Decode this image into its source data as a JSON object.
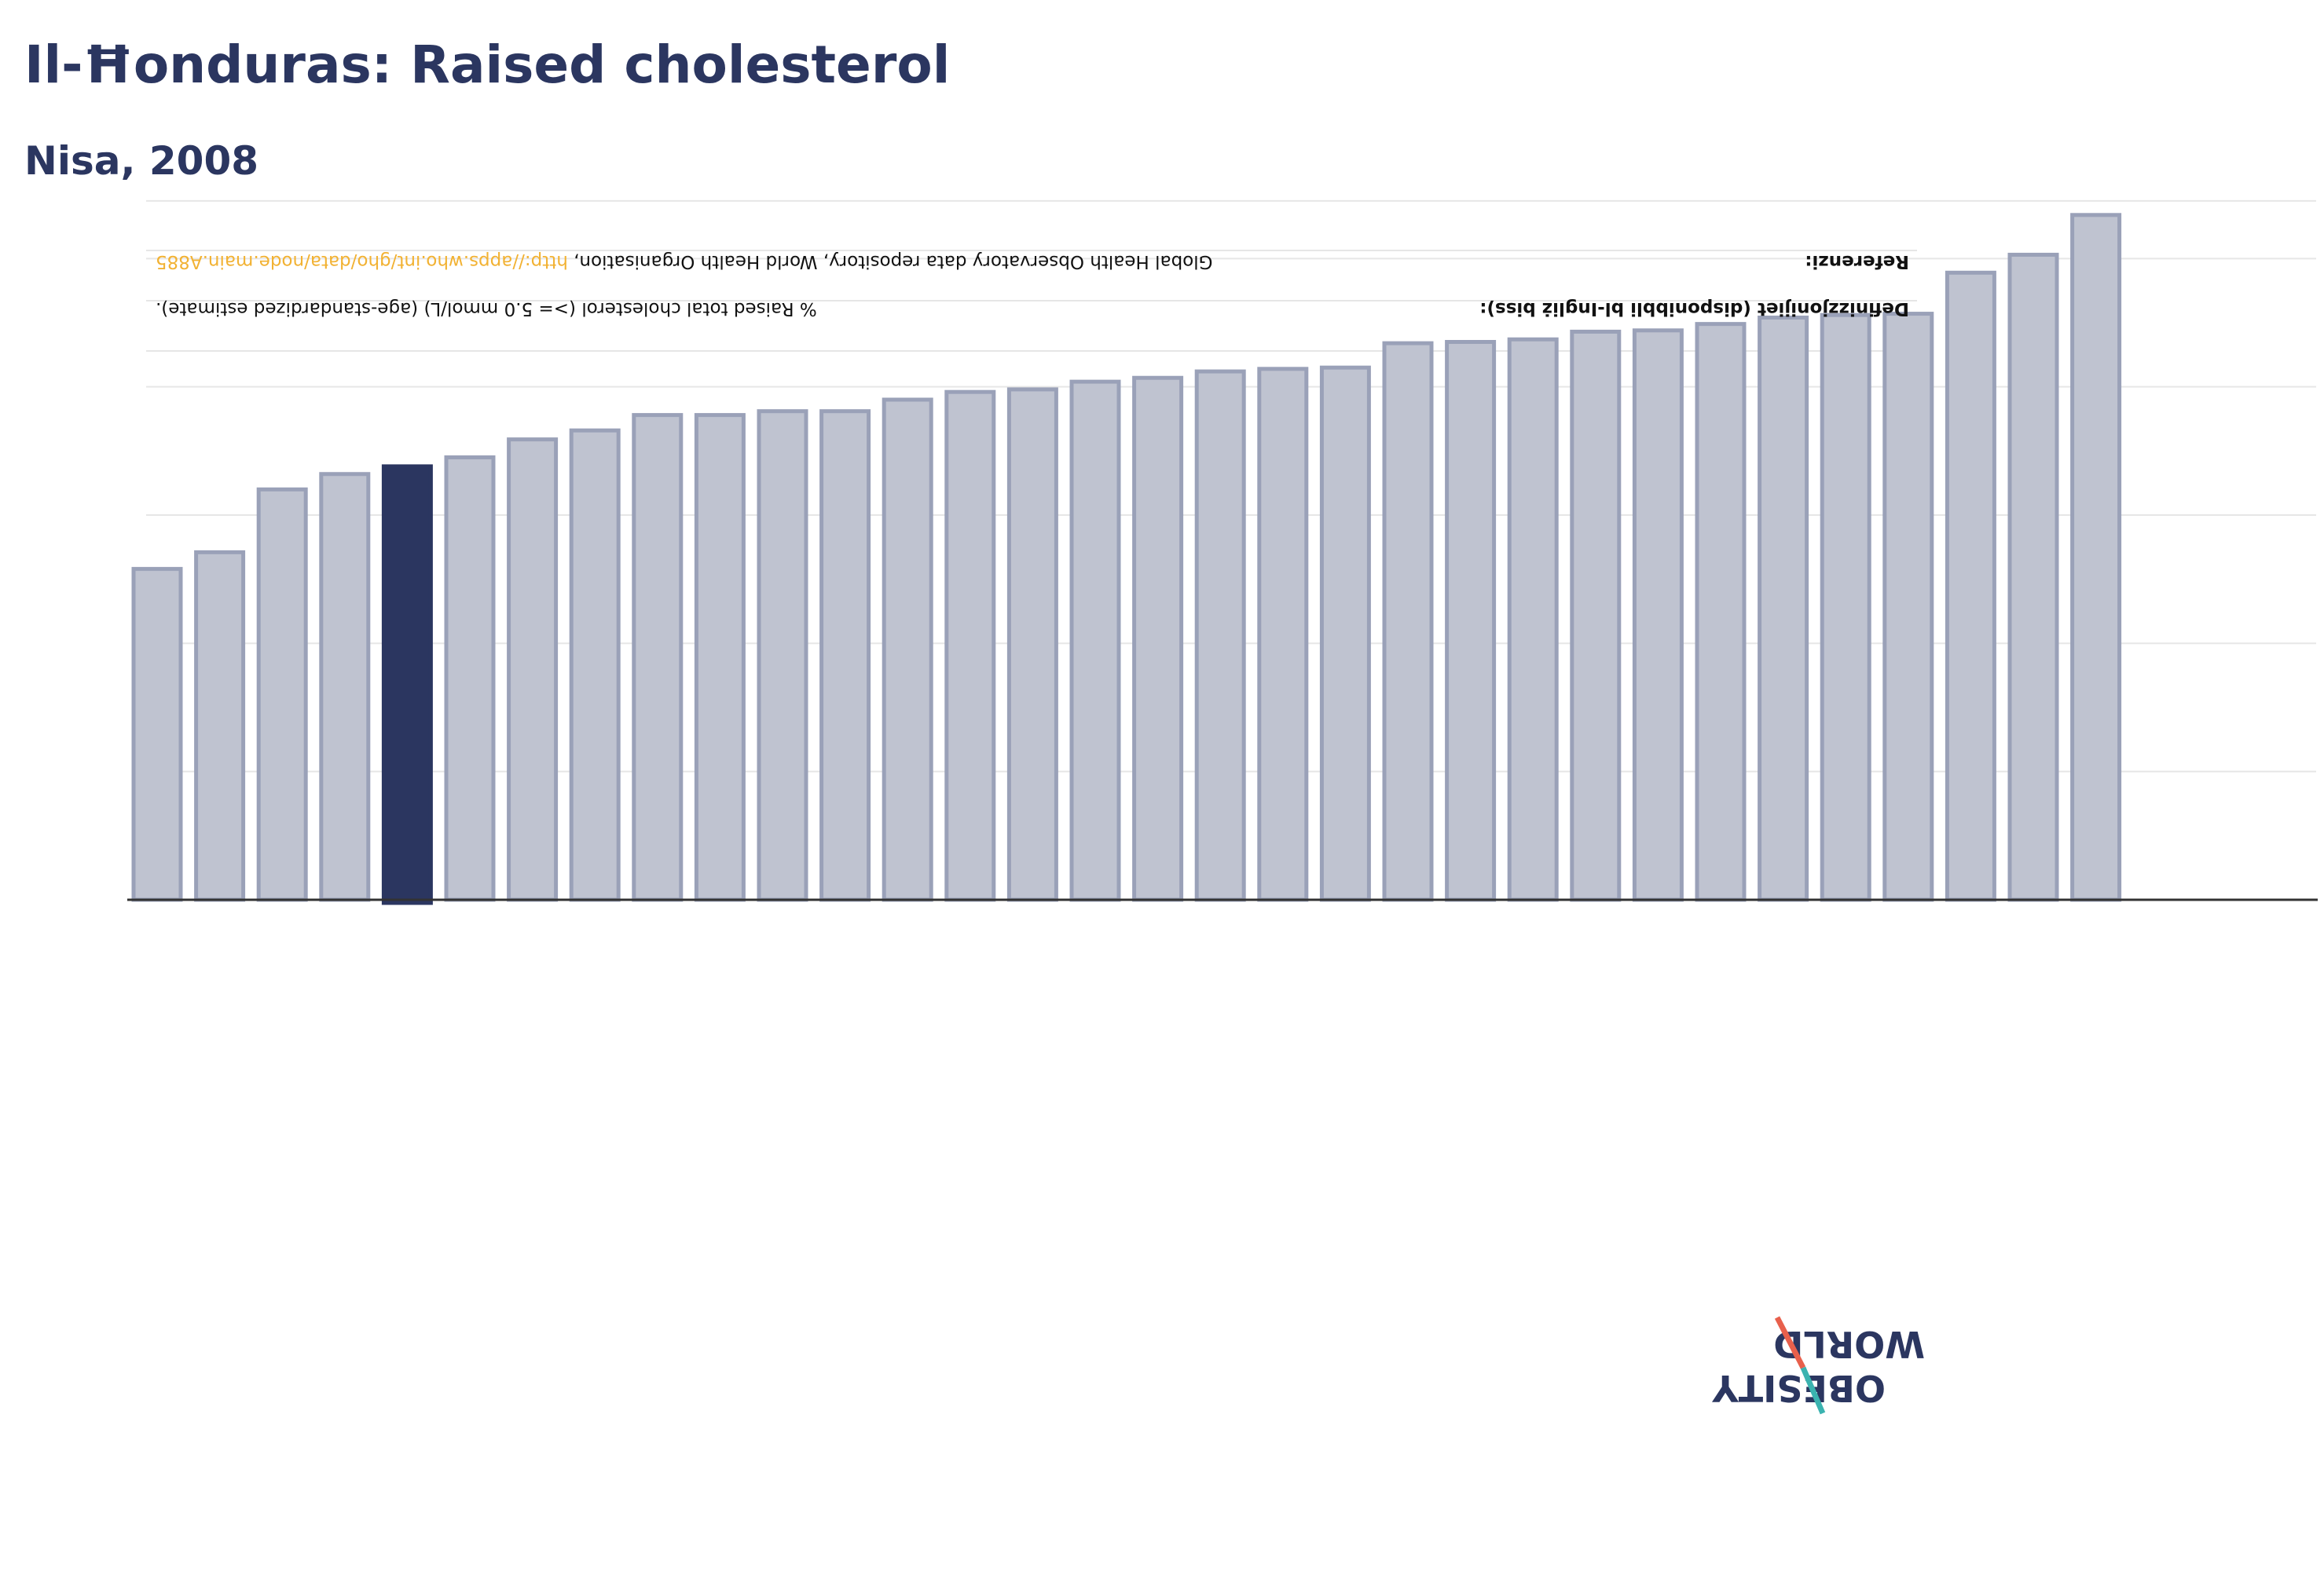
{
  "title": "Il-Ħonduras: Raised cholesterol",
  "subtitle": "Nisa, 2008",
  "info": {
    "definitions_label": "Definizzjonijiet (disponibbli bl-Ingliż biss):",
    "definitions_value": "% Raised total cholesterol (>= 5.0 mmol/L) (age-standardized estimate).",
    "references_label": "Referenzi:",
    "references_value": "Global Health Observatory data repository, World Health Organisation, ",
    "references_link": "http://apps.who.int/gho/data/node.main.A885"
  },
  "logo": {
    "line1": "OBESITY",
    "line2": "WORLD"
  },
  "colors": {
    "bar": "#bfc3d0",
    "bar_border": "#9aa1b8",
    "highlight": "#2b3660",
    "text": "#2b3660",
    "grid": "#e6e6e6",
    "axis": "#333333",
    "link": "#f2b233",
    "logo_red": "#e8604c",
    "logo_teal": "#3bb3b0"
  },
  "chart_data": {
    "type": "bar",
    "highlight_index": 4,
    "values": [
      25.8,
      27.1,
      32.0,
      33.2,
      33.8,
      34.5,
      35.9,
      36.6,
      37.8,
      37.8,
      38.1,
      38.1,
      39.0,
      39.6,
      39.8,
      40.4,
      40.7,
      41.2,
      41.4,
      41.5,
      43.4,
      43.5,
      43.7,
      44.3,
      44.4,
      44.9,
      45.4,
      45.6,
      45.7,
      48.9,
      50.3,
      53.4
    ],
    "ylim": [
      0,
      60
    ],
    "grid": true,
    "gridlines": [
      0,
      10,
      20,
      30,
      40,
      50,
      54.5
    ],
    "xlabel": "",
    "ylabel": ""
  }
}
